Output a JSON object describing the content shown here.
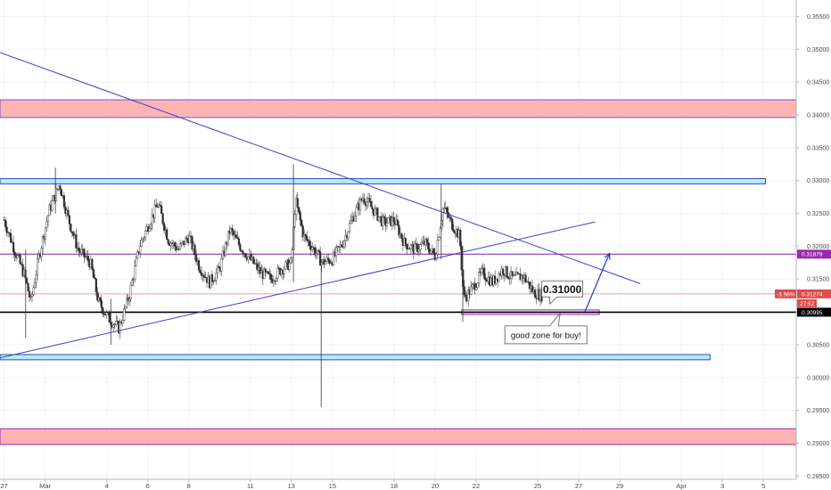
{
  "chart_data": {
    "type": "candlestick",
    "y_axis": {
      "ticks": [
        "0.35500",
        "0.35000",
        "0.34500",
        "0.34000",
        "0.33500",
        "0.33000",
        "0.32500",
        "0.32000",
        "0.31500",
        "0.31000",
        "0.30500",
        "0.30000",
        "0.29500",
        "0.29000",
        "0.28500"
      ],
      "ylim": [
        0.2845,
        0.3575
      ]
    },
    "x_axis": {
      "ticks": [
        {
          "label": "27",
          "day": 0
        },
        {
          "label": "Mar",
          "day": 2
        },
        {
          "label": "4",
          "day": 5
        },
        {
          "label": "6",
          "day": 7
        },
        {
          "label": "8",
          "day": 9
        },
        {
          "label": "11",
          "day": 12
        },
        {
          "label": "13",
          "day": 14
        },
        {
          "label": "15",
          "day": 16
        },
        {
          "label": "18",
          "day": 19
        },
        {
          "label": "20",
          "day": 21
        },
        {
          "label": "22",
          "day": 23
        },
        {
          "label": "25",
          "day": 26
        },
        {
          "label": "27",
          "day": 28
        },
        {
          "label": "29",
          "day": 30
        },
        {
          "label": "Apr",
          "day": 33
        },
        {
          "label": "3",
          "day": 35
        },
        {
          "label": "5",
          "day": 37
        }
      ],
      "range_days": [
        -0.2,
        38.6
      ]
    },
    "price_path": [
      [
        0,
        0.324
      ],
      [
        0.5,
        0.3195
      ],
      [
        1,
        0.3155
      ],
      [
        1.3,
        0.3115
      ],
      [
        1.7,
        0.3185
      ],
      [
        2.2,
        0.3255
      ],
      [
        2.7,
        0.3295
      ],
      [
        3.1,
        0.3245
      ],
      [
        3.6,
        0.3195
      ],
      [
        4.2,
        0.3175
      ],
      [
        4.6,
        0.3115
      ],
      [
        5.1,
        0.309
      ],
      [
        5.6,
        0.3075
      ],
      [
        6.1,
        0.3125
      ],
      [
        6.6,
        0.32
      ],
      [
        7.0,
        0.323
      ],
      [
        7.5,
        0.3265
      ],
      [
        8.0,
        0.321
      ],
      [
        8.5,
        0.3195
      ],
      [
        9.0,
        0.3215
      ],
      [
        9.5,
        0.317
      ],
      [
        10.0,
        0.3145
      ],
      [
        10.5,
        0.3165
      ],
      [
        11.0,
        0.3225
      ],
      [
        11.5,
        0.32
      ],
      [
        12.0,
        0.318
      ],
      [
        12.5,
        0.316
      ],
      [
        13.0,
        0.315
      ],
      [
        13.5,
        0.3165
      ],
      [
        14.0,
        0.3175
      ],
      [
        14.2,
        0.327
      ],
      [
        14.6,
        0.3215
      ],
      [
        15.0,
        0.32
      ],
      [
        15.5,
        0.3175
      ],
      [
        16.0,
        0.318
      ],
      [
        16.5,
        0.3205
      ],
      [
        17.0,
        0.3245
      ],
      [
        17.5,
        0.3275
      ],
      [
        18.0,
        0.3255
      ],
      [
        18.5,
        0.3235
      ],
      [
        19.0,
        0.324
      ],
      [
        19.5,
        0.3205
      ],
      [
        20.0,
        0.3195
      ],
      [
        20.5,
        0.3205
      ],
      [
        21.0,
        0.3185
      ],
      [
        21.4,
        0.326
      ],
      [
        21.8,
        0.3235
      ],
      [
        22.2,
        0.3215
      ],
      [
        22.4,
        0.312
      ],
      [
        22.8,
        0.3135
      ],
      [
        23.3,
        0.316
      ],
      [
        23.8,
        0.3145
      ],
      [
        24.3,
        0.3165
      ],
      [
        24.8,
        0.315
      ],
      [
        25.3,
        0.3155
      ],
      [
        25.8,
        0.313
      ],
      [
        26.2,
        0.3125
      ]
    ],
    "notable_wicks": [
      {
        "day": 1.05,
        "high": 0.3195,
        "low": 0.306
      },
      {
        "day": 2.5,
        "high": 0.332,
        "low": 0.325
      },
      {
        "day": 5.2,
        "high": 0.312,
        "low": 0.305
      },
      {
        "day": 14.1,
        "high": 0.3325,
        "low": 0.3145
      },
      {
        "day": 15.45,
        "high": 0.318,
        "low": 0.2955
      },
      {
        "day": 21.3,
        "high": 0.3295,
        "low": 0.318
      },
      {
        "day": 22.35,
        "high": 0.32,
        "low": 0.3085
      }
    ],
    "current_price": 0.31274,
    "current_change": "-3.96%",
    "countdown": "27:52",
    "horizontal_lines": [
      {
        "name": "support-line",
        "price": 0.30995,
        "label": "0.30995",
        "color": "#000000"
      },
      {
        "name": "resistance-line",
        "price": 0.31879,
        "label": "0.31879",
        "color": "#7b1fa2"
      },
      {
        "name": "last-price-line",
        "price": 0.31274,
        "label": "0.31274",
        "color": "#e06666"
      }
    ],
    "zones": [
      {
        "name": "red-zone-upper",
        "from_day": -0.2,
        "to_day": 38.6,
        "low": 0.3396,
        "high": 0.3423,
        "fill": "#ffb3b3",
        "stroke": "#6a5acd"
      },
      {
        "name": "blue-zone-upper",
        "from_day": -0.2,
        "to_day": 37.1,
        "low": 0.3295,
        "high": 0.3303,
        "fill": "#b3ecff",
        "stroke": "#3949ab"
      },
      {
        "name": "buy-zone-box",
        "from_day": 22.3,
        "to_day": 29.0,
        "low": 0.3096,
        "high": 0.3103,
        "fill": "#f3e5f5",
        "stroke": "#9c27b0"
      },
      {
        "name": "blue-zone-lower",
        "from_day": -0.2,
        "to_day": 34.4,
        "low": 0.3027,
        "high": 0.3035,
        "fill": "#b3ecff",
        "stroke": "#3949ab"
      },
      {
        "name": "red-zone-lower",
        "from_day": -0.2,
        "to_day": 38.6,
        "low": 0.2898,
        "high": 0.2922,
        "fill": "#ffb3b3",
        "stroke": "#9c27b0"
      }
    ],
    "trendlines": [
      {
        "name": "descending-trendline",
        "from": [
          -0.2,
          0.3495
        ],
        "to": [
          31.0,
          0.3143
        ],
        "color": "#3f3fc8"
      },
      {
        "name": "ascending-trendline",
        "from": [
          -0.2,
          0.303
        ],
        "to": [
          28.8,
          0.3237
        ],
        "color": "#3f3fc8"
      }
    ],
    "projection_arrow": {
      "from": [
        28.3,
        0.31
      ],
      "to": [
        29.5,
        0.3189
      ],
      "color": "#1a3cc8"
    },
    "annotations": [
      {
        "name": "price-target-callout",
        "text": "0.31000",
        "day": 27.2,
        "price": 0.3135,
        "style": "price"
      },
      {
        "name": "buy-zone-note",
        "text": "good zone for buy!",
        "day": 26.4,
        "price": 0.3065,
        "style": "note"
      }
    ]
  }
}
